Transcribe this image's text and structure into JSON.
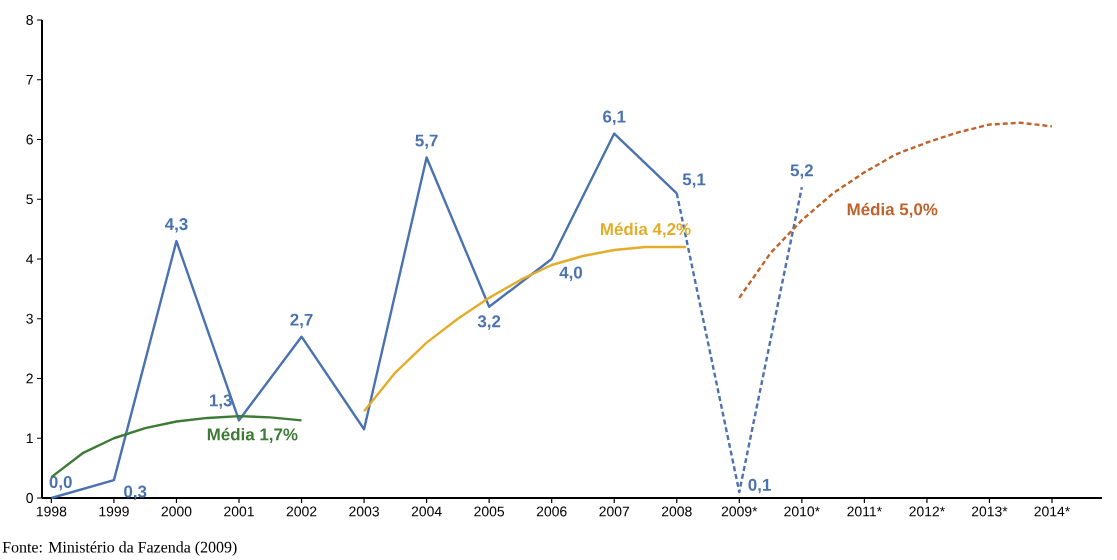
{
  "chart_data": {
    "type": "line",
    "xlim": [
      1997.85,
      2014.8
    ],
    "ylim": [
      0,
      8
    ],
    "xticks": [
      1998,
      1999,
      2000,
      2001,
      2002,
      2003,
      2004,
      2005,
      2006,
      2007,
      2008,
      {
        "value": 2009,
        "label": "2009*"
      },
      {
        "value": 2010,
        "label": "2010*"
      },
      {
        "value": 2011,
        "label": "2011*"
      },
      {
        "value": 2012,
        "label": "2012*"
      },
      {
        "value": 2013,
        "label": "2013*"
      },
      {
        "value": 2014,
        "label": "2014*"
      }
    ],
    "yticks": [
      0,
      1,
      2,
      3,
      4,
      5,
      6,
      7,
      8
    ],
    "grid": false,
    "marker": "none",
    "series": [
      {
        "color": "#4a72b0",
        "line_style": "solid",
        "x": [
          1998,
          1999,
          2000,
          2001,
          2002,
          2003,
          2004,
          2005,
          2006,
          2007,
          2008
        ],
        "values": [
          0.0,
          0.3,
          4.3,
          1.3,
          2.7,
          1.15,
          5.7,
          3.2,
          4.0,
          6.1,
          5.1
        ],
        "value_labels": [
          "0,0",
          "0,3",
          "4,3",
          "1,3",
          "2,7",
          null,
          "5,7",
          "3,2",
          "4,0",
          "6,1",
          "5,1"
        ]
      },
      {
        "color": "#4a72b0",
        "line_style": "dashed",
        "x": [
          2008,
          2009,
          2010
        ],
        "values": [
          5.1,
          0.1,
          5.2
        ],
        "value_labels": [
          null,
          "0,1",
          "5,2"
        ]
      },
      {
        "name": "Média 1,7%",
        "color": "#3d7a35",
        "line_style": "solid",
        "x": [
          1998,
          1998.5,
          1999,
          1999.5,
          2000,
          2000.5,
          2001,
          2001.5,
          2002
        ],
        "values": [
          0.35,
          0.75,
          1.0,
          1.17,
          1.28,
          1.34,
          1.37,
          1.35,
          1.3
        ]
      },
      {
        "name": "Média 4,2%",
        "color": "#e3ad2a",
        "line_style": "solid",
        "x": [
          2003,
          2003.5,
          2004,
          2004.5,
          2005,
          2005.5,
          2006,
          2006.5,
          2007,
          2007.5,
          2008.15
        ],
        "values": [
          1.45,
          2.1,
          2.6,
          3.0,
          3.35,
          3.65,
          3.9,
          4.05,
          4.15,
          4.2,
          4.2
        ]
      },
      {
        "name": "Média 5,0%",
        "color": "#c0622a",
        "line_style": "dashed",
        "x": [
          2009,
          2009.5,
          2010,
          2010.5,
          2011,
          2011.5,
          2012,
          2012.5,
          2013,
          2013.5,
          2014
        ],
        "values": [
          3.35,
          4.1,
          4.65,
          5.1,
          5.45,
          5.75,
          5.95,
          6.12,
          6.25,
          6.28,
          6.22
        ]
      }
    ],
    "annotations": [
      "Fonte: Ministério da Fazenda (2009)"
    ]
  }
}
